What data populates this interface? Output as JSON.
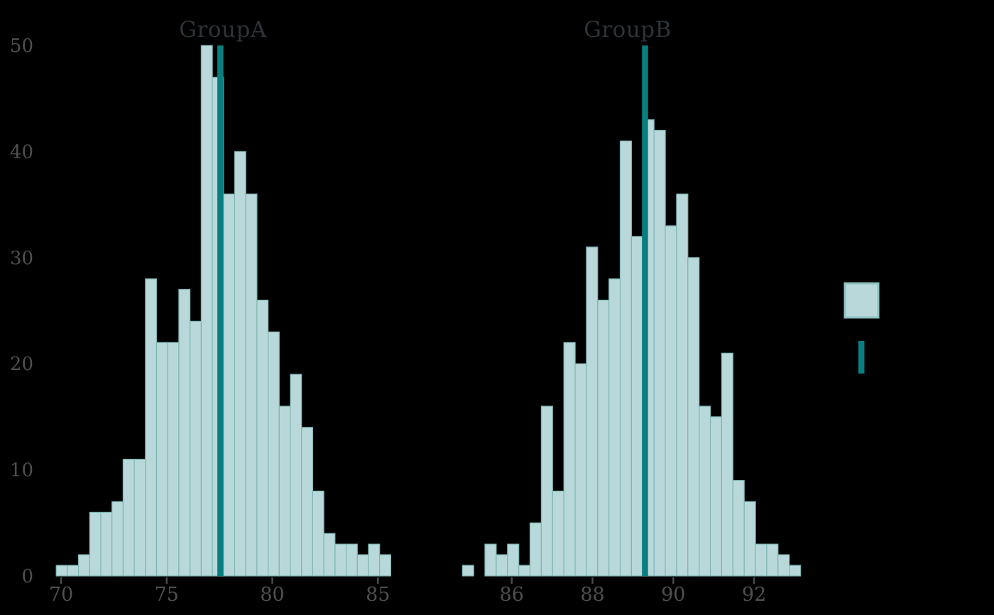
{
  "colors": {
    "background": "#000000",
    "bar_fill": "#b9d8d9",
    "bar_border": "#7db5b5",
    "mean_line": "#087f7e",
    "facet_title": "#2d3439",
    "tick_label": "#4f4f4f",
    "tick_mark": "#4a4a4a",
    "legend_box_border": "#8fc0c0"
  },
  "chart_data": {
    "type": "bar",
    "subtype": "faceted-histogram",
    "title": "",
    "xlabel": "",
    "ylabel": "",
    "ylim": [
      0,
      50
    ],
    "yticks": [
      0,
      10,
      20,
      30,
      40,
      50
    ],
    "grid": "off",
    "legend_position": "right",
    "facets": [
      {
        "title": "GroupA",
        "bin_start": 69.77,
        "bin_width": 0.528,
        "counts": [
          1,
          1,
          2,
          6,
          6,
          7,
          11,
          11,
          28,
          22,
          22,
          27,
          24,
          50,
          47,
          36,
          40,
          36,
          26,
          23,
          16,
          19,
          14,
          8,
          4,
          3,
          3,
          2,
          3,
          2
        ],
        "n": 500,
        "mean_line": 77.54,
        "xticks": [
          70,
          75,
          80,
          85
        ]
      },
      {
        "title": "GroupB",
        "bin_start": 84.78,
        "bin_width": 0.279,
        "counts": [
          1,
          0,
          3,
          2,
          3,
          1,
          5,
          16,
          8,
          22,
          20,
          31,
          26,
          28,
          41,
          32,
          43,
          42,
          33,
          36,
          30,
          16,
          15,
          21,
          9,
          7,
          3,
          3,
          2,
          1
        ],
        "n": 500,
        "mean_line": 89.3,
        "xticks": [
          86,
          88,
          90,
          92
        ]
      }
    ],
    "legend": {
      "entries": [
        {
          "icon": "histogram-swatch"
        },
        {
          "icon": "mean-line-swatch"
        }
      ],
      "labels_visible": false
    }
  }
}
